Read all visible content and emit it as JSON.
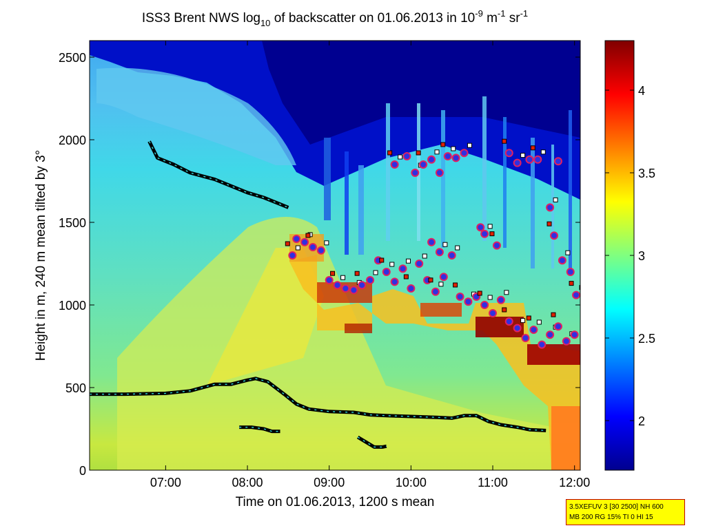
{
  "chart_data": {
    "type": "heatmap",
    "title": {
      "pre": "ISS3 Brent NWS log",
      "sub": "10",
      "mid": " of backscatter on 01.06.2013 in 10",
      "sup1": "-9",
      "unit_m": " m",
      "sup2": "-1",
      "unit_sr": " sr",
      "sup3": "-1"
    },
    "xlabel": "Time on 01.06.2013, 1200 s mean",
    "ylabel": "Height in m, 240 m mean tilted by 3°",
    "xlim": [
      6.07,
      12.07
    ],
    "ylim": [
      0,
      2600
    ],
    "xticks": [
      {
        "value": 7,
        "label": "07:00"
      },
      {
        "value": 8,
        "label": "08:00"
      },
      {
        "value": 9,
        "label": "09:00"
      },
      {
        "value": 10,
        "label": "10:00"
      },
      {
        "value": 11,
        "label": "11:00"
      },
      {
        "value": 12,
        "label": "12:00"
      }
    ],
    "yticks": [
      {
        "value": 0,
        "label": "0"
      },
      {
        "value": 500,
        "label": "500"
      },
      {
        "value": 1000,
        "label": "1000"
      },
      {
        "value": 1500,
        "label": "1500"
      },
      {
        "value": 2000,
        "label": "2000"
      },
      {
        "value": 2500,
        "label": "2500"
      }
    ],
    "colorbar": {
      "range": [
        1.7,
        4.3
      ],
      "ticks": [
        {
          "value": 2,
          "label": "2"
        },
        {
          "value": 2.5,
          "label": "2.5"
        },
        {
          "value": 3,
          "label": "3"
        },
        {
          "value": 3.5,
          "label": "3.5"
        },
        {
          "value": 4,
          "label": "4"
        }
      ],
      "colormap": "jet"
    },
    "colormap_stops": [
      "#00008f",
      "#0000ff",
      "#00ffff",
      "#ffff00",
      "#ff0000",
      "#800000"
    ],
    "mixing_layer_line": [
      [
        6.07,
        460
      ],
      [
        6.5,
        460
      ],
      [
        7.0,
        465
      ],
      [
        7.3,
        480
      ],
      [
        7.6,
        520
      ],
      [
        7.8,
        520
      ],
      [
        8.0,
        545
      ],
      [
        8.1,
        555
      ],
      [
        8.25,
        535
      ],
      [
        8.45,
        460
      ],
      [
        8.6,
        400
      ],
      [
        8.75,
        370
      ],
      [
        9.0,
        355
      ],
      [
        9.3,
        350
      ],
      [
        9.5,
        335
      ],
      [
        9.7,
        330
      ],
      [
        10.0,
        325
      ],
      [
        10.3,
        320
      ],
      [
        10.5,
        315
      ],
      [
        10.65,
        330
      ],
      [
        10.8,
        330
      ],
      [
        10.95,
        295
      ],
      [
        11.1,
        275
      ],
      [
        11.3,
        260
      ],
      [
        11.45,
        245
      ],
      [
        11.65,
        240
      ]
    ],
    "low_layer_1": [
      [
        7.9,
        260
      ],
      [
        8.05,
        260
      ],
      [
        8.2,
        250
      ],
      [
        8.3,
        235
      ],
      [
        8.4,
        235
      ]
    ],
    "low_layer_2": [
      [
        9.35,
        200
      ],
      [
        9.45,
        170
      ],
      [
        9.55,
        140
      ],
      [
        9.65,
        140
      ],
      [
        9.7,
        145
      ]
    ],
    "upper_layer_line": [
      [
        6.8,
        1990
      ],
      [
        6.9,
        1890
      ],
      [
        7.1,
        1850
      ],
      [
        7.3,
        1800
      ],
      [
        7.6,
        1760
      ],
      [
        7.8,
        1720
      ],
      [
        8.0,
        1680
      ],
      [
        8.2,
        1650
      ],
      [
        8.4,
        1610
      ],
      [
        8.5,
        1590
      ]
    ],
    "cloud_markers": [
      [
        8.55,
        1300
      ],
      [
        8.6,
        1400
      ],
      [
        8.7,
        1380
      ],
      [
        8.8,
        1350
      ],
      [
        8.9,
        1330
      ],
      [
        9.0,
        1150
      ],
      [
        9.1,
        1120
      ],
      [
        9.2,
        1100
      ],
      [
        9.3,
        1090
      ],
      [
        9.4,
        1120
      ],
      [
        9.5,
        1150
      ],
      [
        9.6,
        1270
      ],
      [
        9.7,
        1200
      ],
      [
        9.8,
        1140
      ],
      [
        9.9,
        1220
      ],
      [
        10.0,
        1100
      ],
      [
        10.1,
        1250
      ],
      [
        10.2,
        1150
      ],
      [
        10.3,
        1080
      ],
      [
        10.4,
        1170
      ],
      [
        10.5,
        1300
      ],
      [
        10.6,
        1050
      ],
      [
        10.7,
        1020
      ],
      [
        10.8,
        1050
      ],
      [
        10.9,
        1000
      ],
      [
        11.0,
        950
      ],
      [
        11.1,
        1030
      ],
      [
        11.2,
        900
      ],
      [
        11.3,
        860
      ],
      [
        11.4,
        800
      ],
      [
        11.5,
        850
      ],
      [
        11.6,
        760
      ],
      [
        11.7,
        820
      ],
      [
        11.8,
        870
      ],
      [
        11.9,
        780
      ],
      [
        12.0,
        820
      ],
      [
        9.8,
        1850
      ],
      [
        9.95,
        1900
      ],
      [
        10.05,
        1800
      ],
      [
        10.15,
        1850
      ],
      [
        10.25,
        1880
      ],
      [
        10.35,
        1800
      ],
      [
        10.45,
        1900
      ],
      [
        10.55,
        1890
      ],
      [
        10.65,
        1920
      ],
      [
        11.2,
        1920
      ],
      [
        11.3,
        1860
      ],
      [
        11.45,
        1880
      ],
      [
        11.55,
        1880
      ],
      [
        11.8,
        1870
      ],
      [
        11.7,
        1590
      ],
      [
        11.75,
        1420
      ],
      [
        11.85,
        1270
      ],
      [
        11.95,
        1200
      ],
      [
        12.02,
        1060
      ],
      [
        10.85,
        1470
      ],
      [
        10.9,
        1430
      ],
      [
        11.05,
        1360
      ],
      [
        10.35,
        1320
      ],
      [
        10.25,
        1380
      ]
    ]
  },
  "info_box": {
    "line1": "3.5XEFUV 3 [30 2500] NH 600",
    "line2": "MB 200 RG 15% TI 0 HI 15"
  }
}
